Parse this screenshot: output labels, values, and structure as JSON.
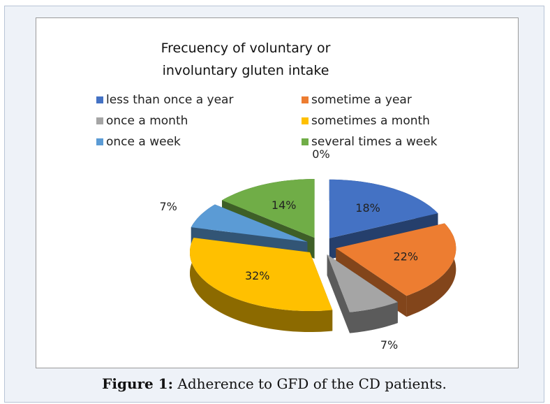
{
  "chart_data": {
    "type": "pie3d",
    "title": "Frecuency of voluntary or involuntary gluten intake",
    "categories": [
      "less than once a year",
      "sometime a year",
      "once a month",
      "sometimes a month",
      "once a week",
      "several times a week",
      null
    ],
    "values": [
      18,
      22,
      7,
      32,
      7,
      14,
      0
    ],
    "value_labels": [
      "18%",
      "22%",
      "7%",
      "32%",
      "7%",
      "14%",
      "0%"
    ],
    "colors": [
      "#4472c4",
      "#ed7d31",
      "#a5a5a5",
      "#ffc000",
      "#5b9bd5",
      "#70ad47",
      "#7f7f7f"
    ],
    "legend": "top"
  },
  "caption": {
    "label": "Figure 1:",
    "text": "Adherence to GFD of the CD patients."
  }
}
